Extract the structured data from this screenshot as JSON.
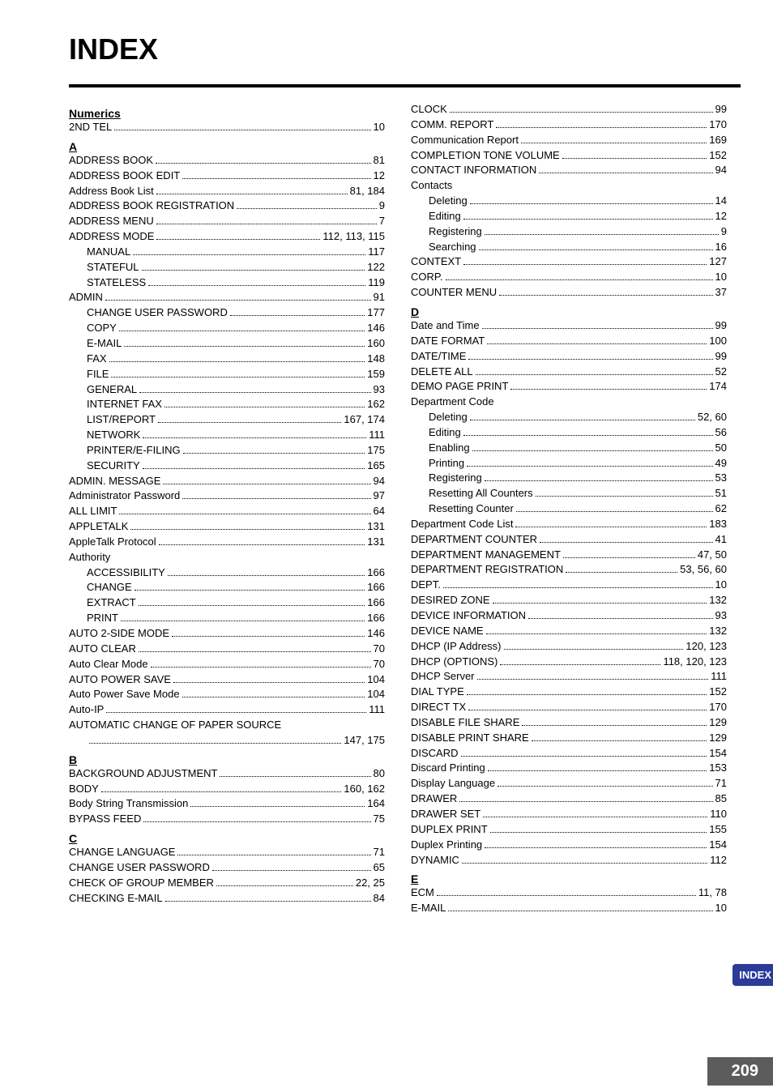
{
  "title": "INDEX",
  "side_tab": "INDEX",
  "page_number": "209",
  "colors": {
    "side_tab_bg": "#2a3b9a",
    "side_tab_fg": "#ffffff",
    "page_badge_bg": "#5c5c5c",
    "page_badge_fg": "#ffffff"
  },
  "columns": [
    {
      "sections": [
        {
          "heading": "Numerics",
          "entries": [
            {
              "label": "2ND TEL",
              "pages": "10",
              "indent": 0
            }
          ]
        },
        {
          "heading": "A",
          "entries": [
            {
              "label": "ADDRESS BOOK",
              "pages": "81",
              "indent": 0
            },
            {
              "label": "ADDRESS BOOK EDIT",
              "pages": "12",
              "indent": 0
            },
            {
              "label": "Address Book List",
              "pages": "81, 184",
              "indent": 0
            },
            {
              "label": "ADDRESS BOOK REGISTRATION",
              "pages": "9",
              "indent": 0
            },
            {
              "label": "ADDRESS MENU",
              "pages": "7",
              "indent": 0
            },
            {
              "label": "ADDRESS MODE",
              "pages": "112, 113, 115",
              "indent": 0
            },
            {
              "label": "MANUAL",
              "pages": "117",
              "indent": 1
            },
            {
              "label": "STATEFUL",
              "pages": "122",
              "indent": 1
            },
            {
              "label": "STATELESS",
              "pages": "119",
              "indent": 1
            },
            {
              "label": "ADMIN",
              "pages": "91",
              "indent": 0
            },
            {
              "label": "CHANGE USER PASSWORD",
              "pages": "177",
              "indent": 1
            },
            {
              "label": "COPY",
              "pages": "146",
              "indent": 1
            },
            {
              "label": "E-MAIL",
              "pages": "160",
              "indent": 1
            },
            {
              "label": "FAX",
              "pages": "148",
              "indent": 1
            },
            {
              "label": "FILE",
              "pages": "159",
              "indent": 1
            },
            {
              "label": "GENERAL",
              "pages": "93",
              "indent": 1
            },
            {
              "label": "INTERNET FAX",
              "pages": "162",
              "indent": 1
            },
            {
              "label": "LIST/REPORT",
              "pages": "167, 174",
              "indent": 1
            },
            {
              "label": "NETWORK",
              "pages": "111",
              "indent": 1
            },
            {
              "label": "PRINTER/E-FILING",
              "pages": "175",
              "indent": 1
            },
            {
              "label": "SECURITY",
              "pages": "165",
              "indent": 1
            },
            {
              "label": "ADMIN. MESSAGE",
              "pages": "94",
              "indent": 0
            },
            {
              "label": "Administrator Password",
              "pages": "97",
              "indent": 0
            },
            {
              "label": "ALL LIMIT",
              "pages": "64",
              "indent": 0
            },
            {
              "label": "APPLETALK",
              "pages": "131",
              "indent": 0
            },
            {
              "label": "AppleTalk Protocol",
              "pages": "131",
              "indent": 0
            },
            {
              "label": "Authority",
              "pages": "",
              "indent": 0,
              "noleader": true
            },
            {
              "label": "ACCESSIBILITY",
              "pages": "166",
              "indent": 1
            },
            {
              "label": "CHANGE",
              "pages": "166",
              "indent": 1
            },
            {
              "label": "EXTRACT",
              "pages": "166",
              "indent": 1
            },
            {
              "label": "PRINT",
              "pages": "166",
              "indent": 1
            },
            {
              "label": "AUTO 2-SIDE MODE",
              "pages": "146",
              "indent": 0
            },
            {
              "label": "AUTO CLEAR",
              "pages": "70",
              "indent": 0
            },
            {
              "label": "Auto Clear Mode",
              "pages": "70",
              "indent": 0
            },
            {
              "label": "AUTO POWER SAVE",
              "pages": "104",
              "indent": 0
            },
            {
              "label": "Auto Power Save Mode",
              "pages": "104",
              "indent": 0
            },
            {
              "label": "Auto-IP",
              "pages": "111",
              "indent": 0
            },
            {
              "label": "AUTOMATIC CHANGE OF PAPER SOURCE",
              "pages": "",
              "indent": 0,
              "noleader": true
            },
            {
              "label": "",
              "pages": "147, 175",
              "indent": 1
            }
          ]
        },
        {
          "heading": "B",
          "entries": [
            {
              "label": "BACKGROUND ADJUSTMENT",
              "pages": "80",
              "indent": 0
            },
            {
              "label": "BODY",
              "pages": "160, 162",
              "indent": 0
            },
            {
              "label": "Body String Transmission",
              "pages": "164",
              "indent": 0
            },
            {
              "label": "BYPASS FEED",
              "pages": "75",
              "indent": 0
            }
          ]
        },
        {
          "heading": "C",
          "entries": [
            {
              "label": "CHANGE LANGUAGE",
              "pages": "71",
              "indent": 0
            },
            {
              "label": "CHANGE USER PASSWORD",
              "pages": "65",
              "indent": 0
            },
            {
              "label": "CHECK OF GROUP MEMBER",
              "pages": "22, 25",
              "indent": 0
            },
            {
              "label": "CHECKING E-MAIL",
              "pages": "84",
              "indent": 0
            }
          ]
        }
      ]
    },
    {
      "sections": [
        {
          "heading": "",
          "entries": [
            {
              "label": "CLOCK",
              "pages": "99",
              "indent": 0
            },
            {
              "label": "COMM. REPORT",
              "pages": "170",
              "indent": 0
            },
            {
              "label": "Communication Report",
              "pages": "169",
              "indent": 0
            },
            {
              "label": "COMPLETION TONE VOLUME",
              "pages": "152",
              "indent": 0
            },
            {
              "label": "CONTACT INFORMATION",
              "pages": "94",
              "indent": 0
            },
            {
              "label": "Contacts",
              "pages": "",
              "indent": 0,
              "noleader": true
            },
            {
              "label": "Deleting",
              "pages": "14",
              "indent": 1
            },
            {
              "label": "Editing",
              "pages": "12",
              "indent": 1
            },
            {
              "label": "Registering",
              "pages": "9",
              "indent": 1
            },
            {
              "label": "Searching",
              "pages": "16",
              "indent": 1
            },
            {
              "label": "CONTEXT",
              "pages": "127",
              "indent": 0
            },
            {
              "label": "CORP.",
              "pages": "10",
              "indent": 0
            },
            {
              "label": "COUNTER MENU",
              "pages": "37",
              "indent": 0
            }
          ]
        },
        {
          "heading": "D",
          "entries": [
            {
              "label": "Date and Time",
              "pages": "99",
              "indent": 0
            },
            {
              "label": "DATE FORMAT",
              "pages": "100",
              "indent": 0
            },
            {
              "label": "DATE/TIME",
              "pages": "99",
              "indent": 0
            },
            {
              "label": "DELETE ALL",
              "pages": "52",
              "indent": 0
            },
            {
              "label": "DEMO PAGE PRINT",
              "pages": "174",
              "indent": 0
            },
            {
              "label": "Department Code",
              "pages": "",
              "indent": 0,
              "noleader": true
            },
            {
              "label": "Deleting",
              "pages": "52, 60",
              "indent": 1
            },
            {
              "label": "Editing",
              "pages": "56",
              "indent": 1
            },
            {
              "label": "Enabling",
              "pages": "50",
              "indent": 1
            },
            {
              "label": "Printing",
              "pages": "49",
              "indent": 1
            },
            {
              "label": "Registering",
              "pages": "53",
              "indent": 1
            },
            {
              "label": "Resetting All Counters",
              "pages": "51",
              "indent": 1
            },
            {
              "label": "Resetting Counter",
              "pages": "62",
              "indent": 1
            },
            {
              "label": "Department Code List",
              "pages": "183",
              "indent": 0
            },
            {
              "label": "DEPARTMENT COUNTER",
              "pages": "41",
              "indent": 0
            },
            {
              "label": "DEPARTMENT MANAGEMENT",
              "pages": "47, 50",
              "indent": 0
            },
            {
              "label": "DEPARTMENT REGISTRATION",
              "pages": "53, 56, 60",
              "indent": 0
            },
            {
              "label": "DEPT.",
              "pages": "10",
              "indent": 0
            },
            {
              "label": "DESIRED ZONE",
              "pages": "132",
              "indent": 0
            },
            {
              "label": "DEVICE INFORMATION",
              "pages": "93",
              "indent": 0
            },
            {
              "label": "DEVICE NAME",
              "pages": "132",
              "indent": 0
            },
            {
              "label": "DHCP (IP Address)",
              "pages": "120, 123",
              "indent": 0
            },
            {
              "label": "DHCP (OPTIONS)",
              "pages": "118, 120, 123",
              "indent": 0
            },
            {
              "label": "DHCP Server",
              "pages": "111",
              "indent": 0
            },
            {
              "label": "DIAL TYPE",
              "pages": "152",
              "indent": 0
            },
            {
              "label": "DIRECT TX",
              "pages": "170",
              "indent": 0
            },
            {
              "label": "DISABLE FILE SHARE",
              "pages": "129",
              "indent": 0
            },
            {
              "label": "DISABLE PRINT SHARE",
              "pages": "129",
              "indent": 0
            },
            {
              "label": "DISCARD",
              "pages": "154",
              "indent": 0
            },
            {
              "label": "Discard Printing",
              "pages": "153",
              "indent": 0
            },
            {
              "label": "Display Language",
              "pages": "71",
              "indent": 0
            },
            {
              "label": "DRAWER",
              "pages": "85",
              "indent": 0
            },
            {
              "label": "DRAWER SET",
              "pages": "110",
              "indent": 0
            },
            {
              "label": "DUPLEX PRINT",
              "pages": "155",
              "indent": 0
            },
            {
              "label": "Duplex Printing",
              "pages": "154",
              "indent": 0
            },
            {
              "label": "DYNAMIC",
              "pages": "112",
              "indent": 0
            }
          ]
        },
        {
          "heading": "E",
          "entries": [
            {
              "label": "ECM",
              "pages": "11, 78",
              "indent": 0
            },
            {
              "label": "E-MAIL",
              "pages": "10",
              "indent": 0
            }
          ]
        }
      ]
    }
  ]
}
